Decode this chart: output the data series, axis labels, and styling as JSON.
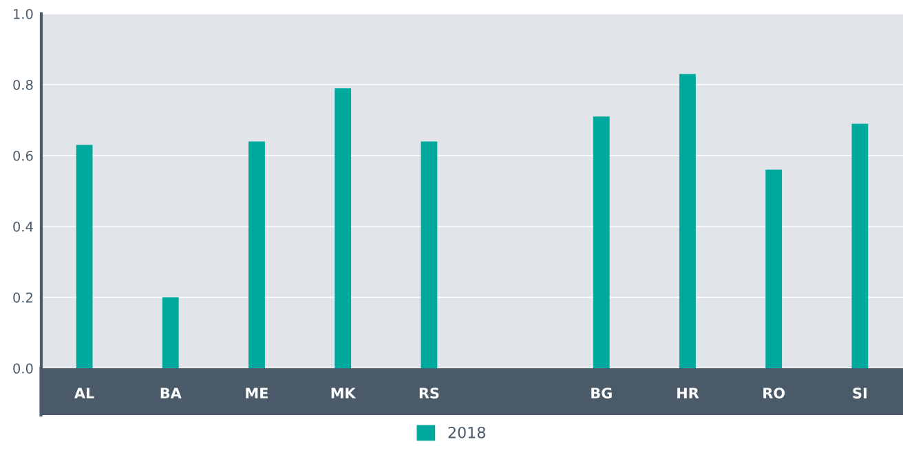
{
  "chart_data": {
    "type": "bar",
    "categories": [
      "AL",
      "BA",
      "ME",
      "MK",
      "RS",
      null,
      "BG",
      "HR",
      "RO",
      "SI"
    ],
    "series": [
      {
        "name": "2018",
        "color": "#00a99d",
        "values": [
          0.63,
          0.2,
          0.64,
          0.79,
          0.64,
          null,
          0.71,
          0.83,
          0.56,
          0.69
        ]
      }
    ],
    "ylim": [
      0,
      1.0
    ],
    "yticks": [
      {
        "value": 0,
        "label": "0.0"
      },
      0.2,
      0.4,
      0.6,
      0.8,
      {
        "value": 1.0,
        "label": "1.0"
      }
    ],
    "grid": "y",
    "legend": "bottom"
  }
}
